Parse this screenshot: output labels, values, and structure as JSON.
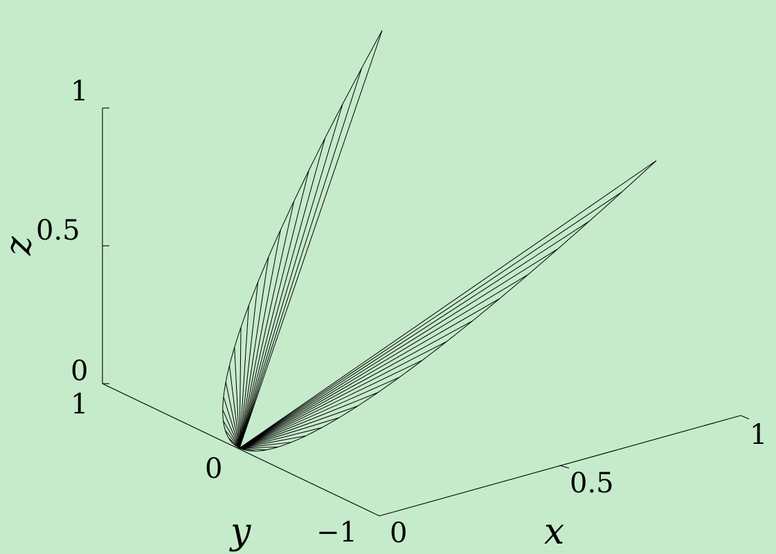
{
  "background": "#c6ebcb",
  "line_color": "#000000",
  "chart_data": {
    "type": "surface-3d-wireframe",
    "description_visible": false,
    "axes": {
      "x": {
        "label": "x",
        "range": [
          0,
          1
        ],
        "ticks": [
          0,
          0.5,
          1
        ],
        "tick_labels": [
          "0",
          "0.5",
          "1"
        ]
      },
      "y": {
        "label": "y",
        "range": [
          -1,
          1
        ],
        "ticks": [
          -1,
          0,
          1
        ],
        "tick_labels": [
          "−1",
          "0",
          "1"
        ]
      },
      "z": {
        "label": "z",
        "range": [
          0,
          1
        ],
        "ticks": [
          0,
          0.5,
          1
        ],
        "tick_labels": [
          "0",
          "0.5",
          "1"
        ]
      }
    },
    "surface": {
      "apex": [
        0,
        0,
        0
      ],
      "boundary_curve": {
        "x": "t^2",
        "y": "t",
        "z": "t^2",
        "t_range": [
          -1,
          1
        ]
      },
      "rulings": 41
    },
    "grid": false
  }
}
